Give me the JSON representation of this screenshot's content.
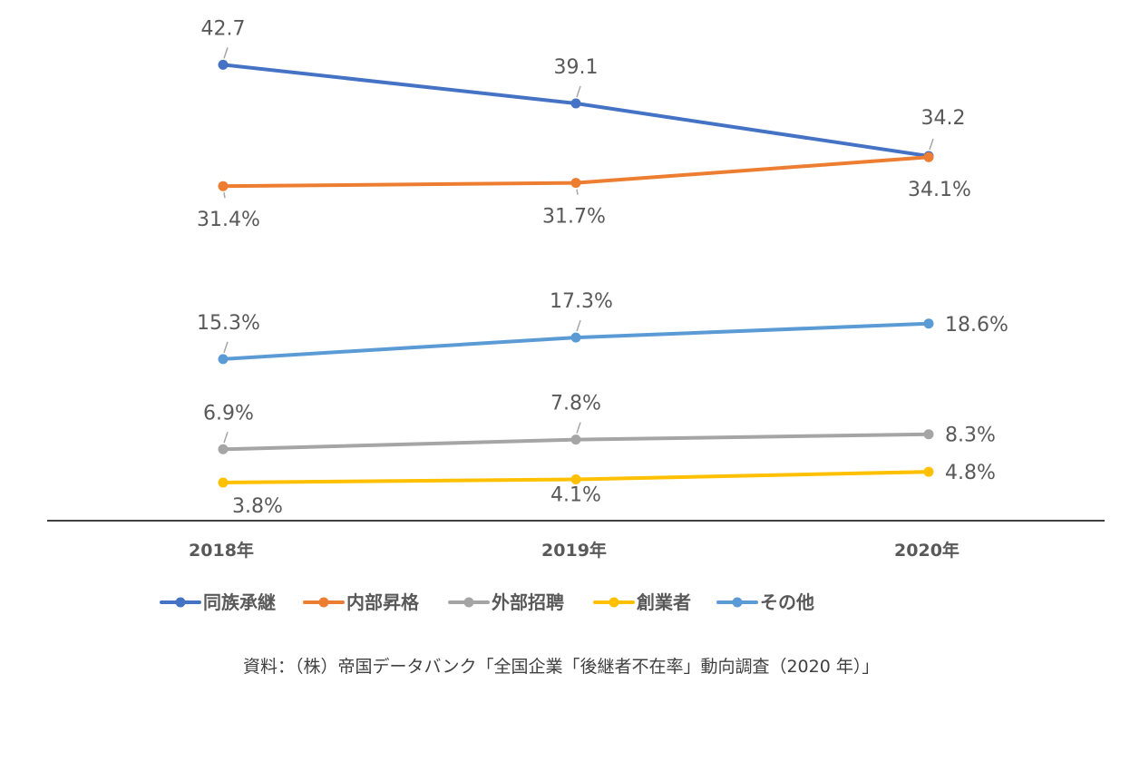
{
  "chart_data": {
    "type": "line",
    "categories": [
      "2018年",
      "2019年",
      "2020年"
    ],
    "series": [
      {
        "name": "同族承継",
        "color": "#4472C4",
        "values": [
          42.7,
          39.1,
          34.2
        ],
        "labels": [
          "42.7",
          "39.1",
          "34.2"
        ]
      },
      {
        "name": "内部昇格",
        "color": "#ED7D31",
        "values": [
          31.4,
          31.7,
          34.1
        ],
        "labels": [
          "31.4%",
          "31.7%",
          "34.1%"
        ]
      },
      {
        "name": "外部招聘",
        "color": "#A5A5A5",
        "values": [
          6.9,
          7.8,
          8.3
        ],
        "labels": [
          "6.9%",
          "7.8%",
          "8.3%"
        ]
      },
      {
        "name": "創業者",
        "color": "#FFC000",
        "values": [
          3.8,
          4.1,
          4.8
        ],
        "labels": [
          "3.8%",
          "4.1%",
          "4.8%"
        ]
      },
      {
        "name": "その他",
        "color": "#5B9BD5",
        "values": [
          15.3,
          17.3,
          18.6
        ],
        "labels": [
          "15.3%",
          "17.3%",
          "18.6%"
        ]
      }
    ],
    "legend_position": "bottom",
    "grid": false,
    "ylim": [
      0,
      44
    ],
    "source": "資料：（株）帝国データバンク「全国企業「後継者不在率」動向調査（2020 年）」"
  }
}
